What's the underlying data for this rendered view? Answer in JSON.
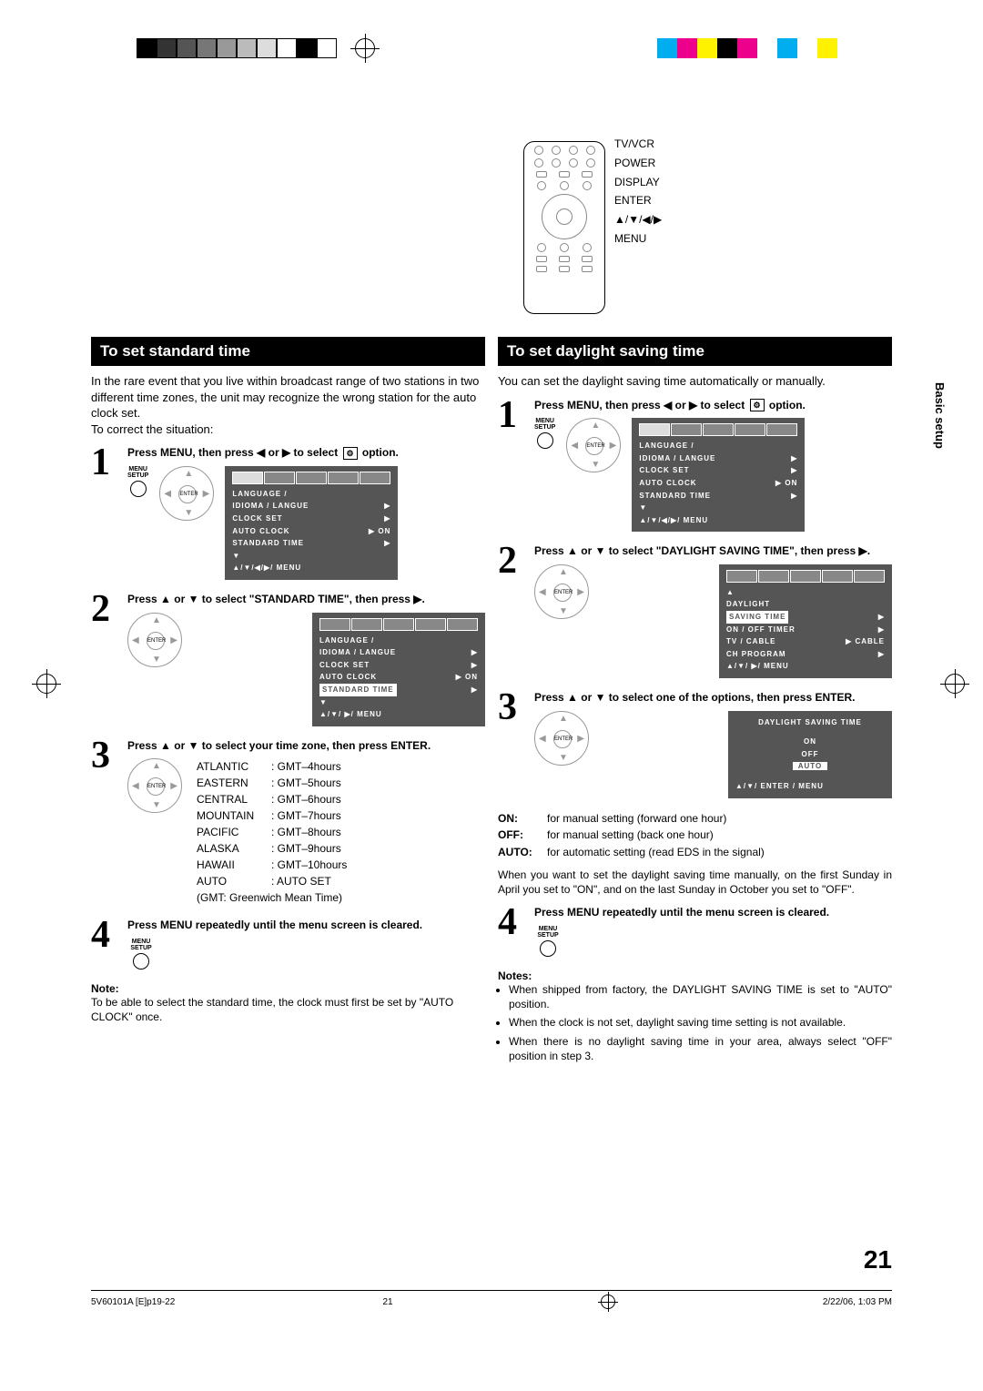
{
  "printbar_colors_a": [
    "#000",
    "#333",
    "#555",
    "#777",
    "#999",
    "#bbb",
    "#ddd",
    "#fff",
    "#000",
    "#fff"
  ],
  "printbar_colors_b": [
    "#00aeef",
    "#ec008c",
    "#fff200",
    "#000",
    "#ec008c",
    "#fff",
    "#00aeef",
    "#fff",
    "#fff200",
    "#fff"
  ],
  "remote": {
    "labels": [
      "TV/VCR",
      "POWER",
      "DISPLAY",
      "ENTER",
      "▲/▼/◀/▶",
      "MENU"
    ]
  },
  "side_label": "Basic setup",
  "left": {
    "header": "To set standard time",
    "intro": "In the rare event that you live within broadcast range of two stations in two different time zones, the unit may recognize the wrong station for the auto clock set.\nTo correct the situation:",
    "step1": "Press MENU, then press ◀ or ▶ to select",
    "step1b": "option.",
    "osd1": {
      "lines": [
        [
          "LANGUAGE /",
          ""
        ],
        [
          "  IDIOMA / LANGUE",
          "▶"
        ],
        [
          "CLOCK SET",
          "▶"
        ],
        [
          "AUTO CLOCK",
          "▶ ON"
        ],
        [
          "STANDARD TIME",
          "▶"
        ],
        [
          "▼",
          ""
        ],
        [
          "▲/▼/◀/▶/ MENU",
          ""
        ]
      ]
    },
    "step2": "Press ▲ or ▼ to select \"STANDARD TIME\", then press ▶.",
    "osd2": {
      "lines": [
        [
          "LANGUAGE /",
          ""
        ],
        [
          "  IDIOMA / LANGUE",
          "▶"
        ],
        [
          "CLOCK SET",
          "▶"
        ],
        [
          "AUTO CLOCK",
          "▶ ON"
        ],
        [
          "STANDARD TIME",
          "▶"
        ],
        [
          "▼",
          ""
        ],
        [
          "▲/▼/ ▶/ MENU",
          ""
        ]
      ],
      "highlight_row": 4
    },
    "step3": "Press ▲ or ▼ to select your time zone, then press ENTER.",
    "timezones": [
      [
        "ATLANTIC",
        ": GMT–4hours"
      ],
      [
        "EASTERN",
        ": GMT–5hours"
      ],
      [
        "CENTRAL",
        ": GMT–6hours"
      ],
      [
        "MOUNTAIN",
        ": GMT–7hours"
      ],
      [
        "PACIFIC",
        ": GMT–8hours"
      ],
      [
        "ALASKA",
        ": GMT–9hours"
      ],
      [
        "HAWAII",
        ": GMT–10hours"
      ],
      [
        "AUTO",
        ": AUTO SET"
      ]
    ],
    "gmt_note": "(GMT: Greenwich Mean Time)",
    "step4": "Press MENU repeatedly until the menu screen is cleared.",
    "note_h": "Note:",
    "note_b": "To be able to select the standard time, the clock must first be set by \"AUTO CLOCK\" once."
  },
  "right": {
    "header": "To set daylight saving time",
    "intro": "You can set the daylight saving time automatically or manually.",
    "step1": "Press MENU, then press ◀ or ▶ to select",
    "step1b": "option.",
    "osd1": {
      "lines": [
        [
          "LANGUAGE /",
          ""
        ],
        [
          "  IDIOMA / LANGUE",
          "▶"
        ],
        [
          "CLOCK SET",
          "▶"
        ],
        [
          "AUTO CLOCK",
          "▶ ON"
        ],
        [
          "STANDARD TIME",
          "▶"
        ],
        [
          "▼",
          ""
        ],
        [
          "▲/▼/◀/▶/ MENU",
          ""
        ]
      ]
    },
    "step2": "Press ▲ or ▼ to select \"DAYLIGHT SAVING TIME\", then press ▶.",
    "osd2": {
      "lines": [
        [
          "▲",
          ""
        ],
        [
          "DAYLIGHT",
          ""
        ],
        [
          "  SAVING TIME",
          "▶"
        ],
        [
          "ON / OFF TIMER",
          "▶"
        ],
        [
          "TV / CABLE",
          "▶ CABLE"
        ],
        [
          "CH PROGRAM",
          "▶"
        ],
        [
          "▲/▼/ ▶/ MENU",
          ""
        ]
      ],
      "highlight_row": 2
    },
    "step3": "Press ▲ or ▼ to select one of the options, then press ENTER.",
    "osd3": {
      "title": "DAYLIGHT SAVING TIME",
      "options": [
        "ON",
        "OFF",
        "AUTO"
      ],
      "highlight": 2,
      "footer": "▲/▼/ ENTER / MENU"
    },
    "defs": [
      [
        "ON:",
        "for manual setting (forward one hour)"
      ],
      [
        "OFF:",
        "for manual setting (back one hour)"
      ],
      [
        "AUTO:",
        "for automatic setting (read EDS in the signal)"
      ]
    ],
    "para": "When you want to set the daylight saving time manually, on the first Sunday in April you set to \"ON\", and on the last Sunday in October you set to \"OFF\".",
    "step4": "Press MENU repeatedly until the menu screen is cleared.",
    "notes_h": "Notes:",
    "notes": [
      "When shipped from factory, the DAYLIGHT SAVING TIME is set to \"AUTO\" position.",
      "When the clock is not set, daylight saving time setting is not available.",
      "When there is no daylight saving time in your area, always select \"OFF\" position in step 3."
    ]
  },
  "page_number": "21",
  "footer": {
    "left": "5V60101A [E]p19-22",
    "mid": "21",
    "right": "2/22/06, 1:03 PM"
  }
}
